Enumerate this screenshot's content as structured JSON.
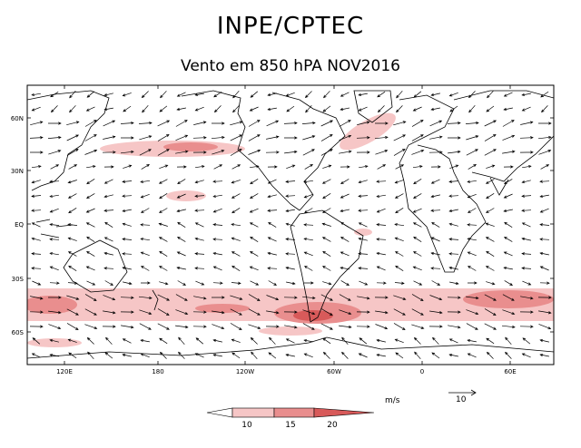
{
  "header": {
    "title": "INPE/CPTEC",
    "subtitle": "Vento em 850 hPA NOV2016"
  },
  "map": {
    "lat_labels": [
      "60N",
      "30N",
      "EQ",
      "30S",
      "60S"
    ],
    "lon_labels": [
      "120E",
      "180",
      "120W",
      "60W",
      "0",
      "60E"
    ],
    "colors": {
      "c10": "#f6c6c6",
      "c15": "#e98e8e",
      "c20": "#d85a5a",
      "land": "#000000",
      "arrow": "#000000"
    }
  },
  "legend": {
    "units": "m/s",
    "ref_value": "10",
    "bins": [
      "10",
      "15",
      "20"
    ]
  }
}
